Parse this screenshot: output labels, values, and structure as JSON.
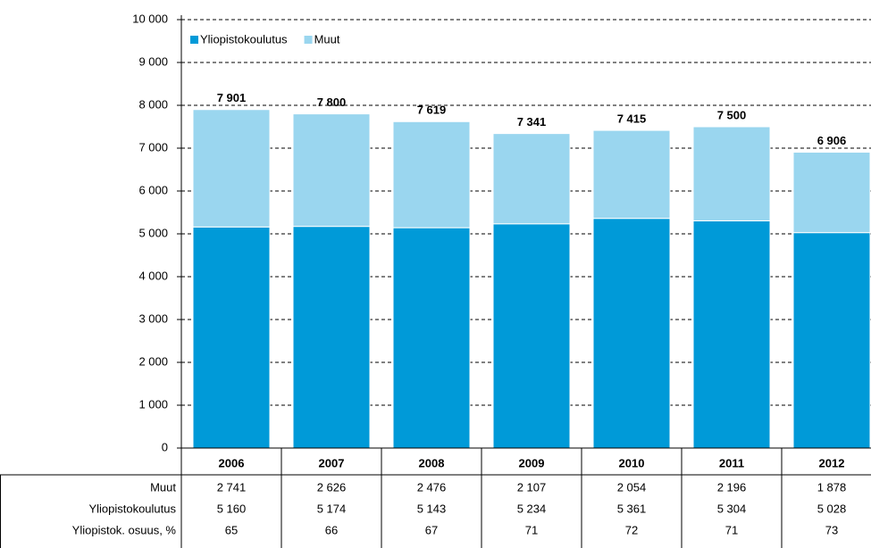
{
  "chart_data": {
    "type": "bar",
    "stacked": true,
    "categories": [
      "2006",
      "2007",
      "2008",
      "2009",
      "2010",
      "2011",
      "2012"
    ],
    "series": [
      {
        "name": "Yliopistokoulutus",
        "color": "#009ad8",
        "values": [
          5160,
          5174,
          5143,
          5234,
          5361,
          5304,
          5028
        ],
        "value_labels": [
          "5 160",
          "5 174",
          "5 143",
          "5 234",
          "5 361",
          "5 304",
          "5 028"
        ]
      },
      {
        "name": "Muut",
        "color": "#9ad6ef",
        "values": [
          2741,
          2626,
          2476,
          2107,
          2054,
          2196,
          1878
        ],
        "value_labels": [
          "2 741",
          "2 626",
          "2 476",
          "2 107",
          "2 054",
          "2 196",
          "1 878"
        ]
      }
    ],
    "totals": [
      7901,
      7800,
      7619,
      7341,
      7415,
      7500,
      6906
    ],
    "total_labels": [
      "7 901",
      "7 800",
      "7 619",
      "7 341",
      "7 415",
      "7 500",
      "6 906"
    ],
    "share": {
      "name": "Yliopistok. osuus, %",
      "values": [
        65,
        66,
        67,
        71,
        72,
        71,
        73
      ]
    },
    "ylim": [
      0,
      10000
    ],
    "yticks": [
      0,
      {
        "value": 1000,
        "label": "1 000"
      },
      {
        "value": 2000,
        "label": "2 000"
      },
      {
        "value": 3000,
        "label": "3 000"
      },
      {
        "value": 4000,
        "label": "4 000"
      },
      {
        "value": 5000,
        "label": "5 000"
      },
      {
        "value": 6000,
        "label": "6 000"
      },
      {
        "value": 7000,
        "label": "7 000"
      },
      {
        "value": 8000,
        "label": "8 000"
      },
      {
        "value": 9000,
        "label": "9 000"
      },
      {
        "value": 10000,
        "label": "10 000"
      }
    ],
    "grid": true,
    "legend": "top-left"
  }
}
